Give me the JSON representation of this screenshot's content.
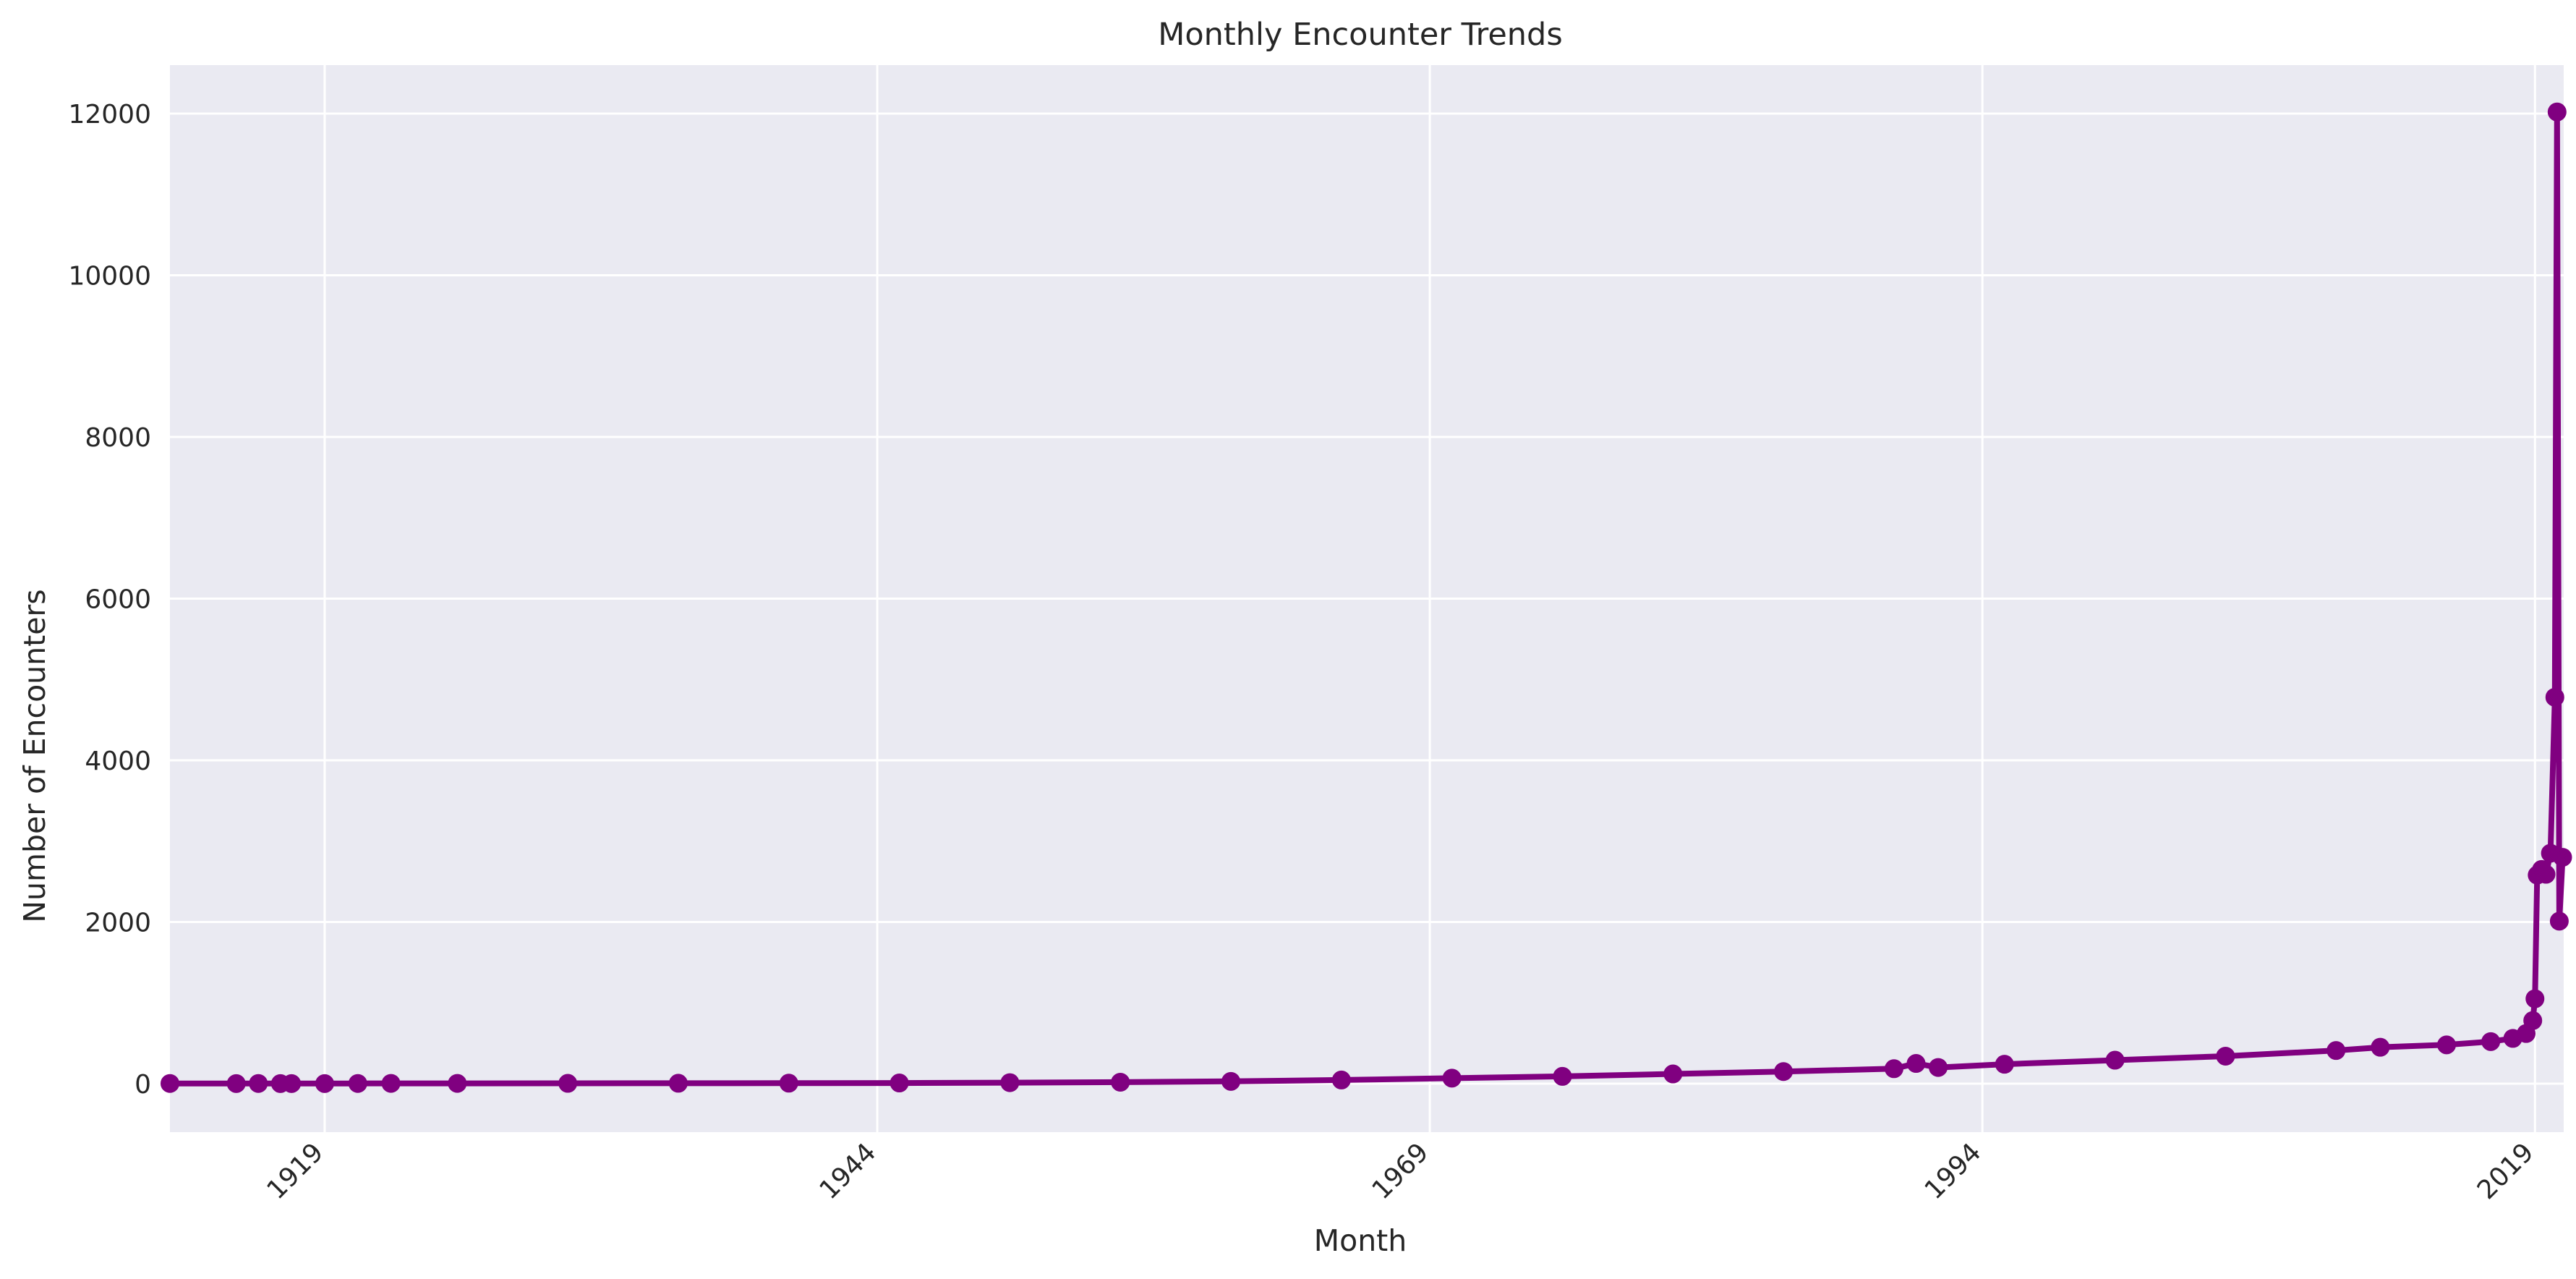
{
  "chart_data": {
    "type": "line",
    "title": "Monthly Encounter Trends",
    "xlabel": "Month",
    "ylabel": "Number of Encounters",
    "x_ticks": [
      "1919",
      "1944",
      "1969",
      "1994",
      "2019"
    ],
    "y_ticks": [
      "0",
      "2000",
      "4000",
      "6000",
      "8000",
      "10000",
      "12000"
    ],
    "xlim": [
      1912.0,
      2020.3
    ],
    "ylim": [
      -600,
      12600
    ],
    "grid": true,
    "legend": "none",
    "colors": {
      "series": "#800080",
      "plot_background": "#eaeaf2",
      "grid": "#ffffff"
    },
    "series": [
      {
        "marker": "circle",
        "points": [
          [
            1912.0,
            2
          ],
          [
            1915.0,
            1
          ],
          [
            1916.0,
            2
          ],
          [
            1917.0,
            1
          ],
          [
            1917.5,
            1
          ],
          [
            1919.0,
            1
          ],
          [
            1920.5,
            2
          ],
          [
            1922.0,
            3
          ],
          [
            1925.0,
            3
          ],
          [
            1930.0,
            4
          ],
          [
            1935.0,
            5
          ],
          [
            1940.0,
            6
          ],
          [
            1945.0,
            8
          ],
          [
            1950.0,
            12
          ],
          [
            1955.0,
            18
          ],
          [
            1960.0,
            28
          ],
          [
            1965.0,
            45
          ],
          [
            1970.0,
            68
          ],
          [
            1975.0,
            90
          ],
          [
            1980.0,
            120
          ],
          [
            1985.0,
            150
          ],
          [
            1990.0,
            185
          ],
          [
            1991.0,
            250
          ],
          [
            1992.0,
            200
          ],
          [
            1995.0,
            240
          ],
          [
            2000.0,
            290
          ],
          [
            2005.0,
            340
          ],
          [
            2010.0,
            410
          ],
          [
            2012.0,
            450
          ],
          [
            2015.0,
            480
          ],
          [
            2017.0,
            520
          ],
          [
            2018.0,
            560
          ],
          [
            2018.6,
            620
          ],
          [
            2018.9,
            780
          ],
          [
            2019.0,
            1050
          ],
          [
            2019.1,
            2580
          ],
          [
            2019.3,
            2650
          ],
          [
            2019.5,
            2590
          ],
          [
            2019.7,
            2850
          ],
          [
            2019.9,
            4780
          ],
          [
            2020.0,
            12020
          ],
          [
            2020.1,
            2010
          ],
          [
            2020.25,
            2800
          ]
        ]
      }
    ]
  }
}
